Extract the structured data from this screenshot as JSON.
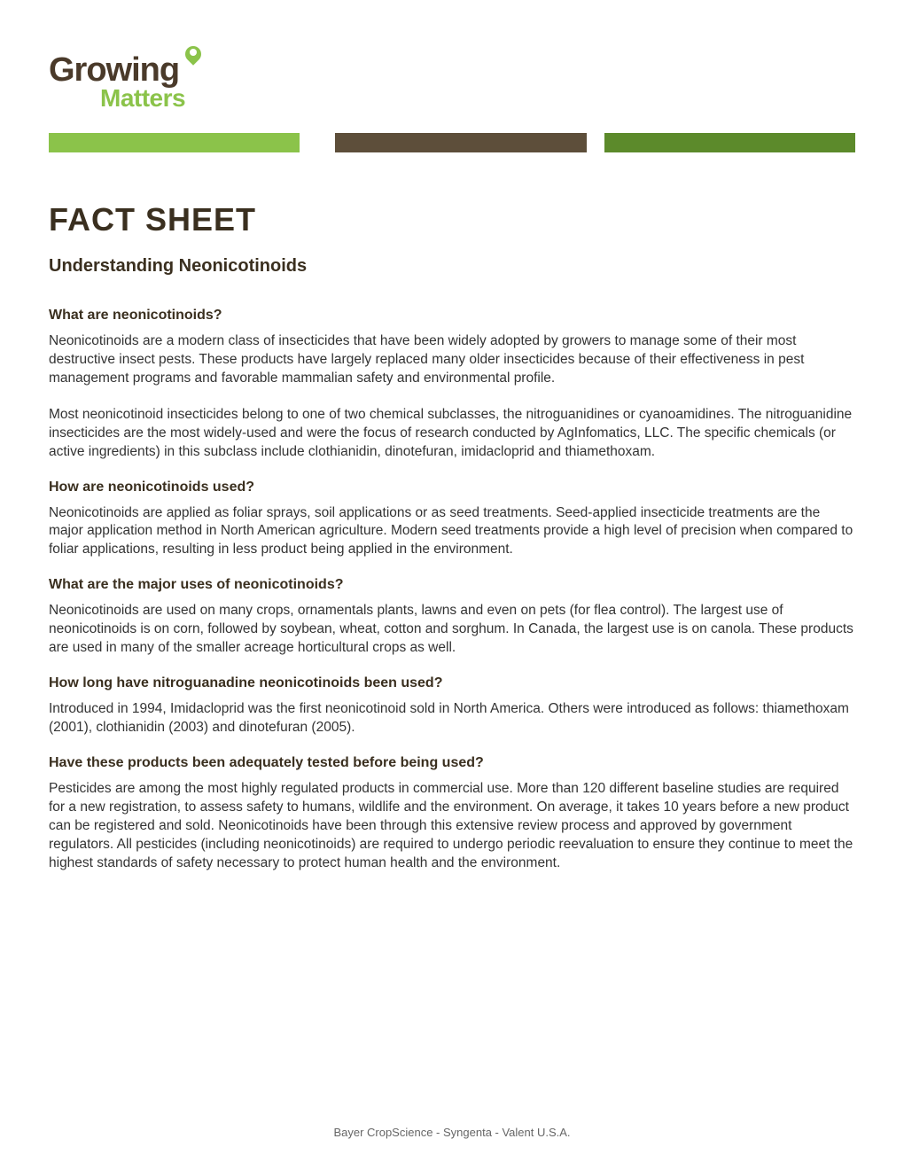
{
  "logo": {
    "text_top": "Growing",
    "text_bottom": "Matters"
  },
  "colors": {
    "light_green": "#8bc34a",
    "brown": "#5d4e3a",
    "dark_green": "#5c8a2b",
    "text_dark": "#3a2f1f",
    "body_text": "#333333",
    "footer_text": "#666666",
    "background": "#ffffff"
  },
  "main_title": "FACT SHEET",
  "subtitle": "Understanding Neonicotinoids",
  "sections": [
    {
      "heading": "What are neonicotinoids?",
      "paragraphs": [
        "Neonicotinoids are a modern class of insecticides that have been widely adopted by growers to manage some of their most destructive insect pests.  These products have largely replaced many older insecticides because of their effectiveness in pest management programs and favorable mammalian safety and environmental profile.",
        "Most neonicotinoid insecticides belong to one of two chemical subclasses, the nitroguanidines or cyanoamidines.   The nitroguanidine insecticides are the most widely-used and were the focus of research conducted by AgInfomatics, LLC.  The specific chemicals (or active ingredients) in this subclass include clothianidin, dinotefuran, imidacloprid and thiamethoxam."
      ]
    },
    {
      "heading": "How are neonicotinoids used?",
      "paragraphs": [
        "Neonicotinoids are applied as foliar sprays, soil applications or as seed treatments.  Seed-applied insecticide treatments are the major application method in North American agriculture.  Modern seed treatments provide a high level of precision when compared to foliar applications, resulting in less product being applied in the environment."
      ]
    },
    {
      "heading": "What are the major uses of neonicotinoids?",
      "paragraphs": [
        "Neonicotinoids are used on many crops, ornamentals plants, lawns and even on pets (for flea control).  The largest use of neonicotinoids is on corn, followed by soybean, wheat, cotton and sorghum.  In Canada, the largest use is on canola.  These products are used in many of the smaller acreage horticultural crops as well."
      ]
    },
    {
      "heading": "How long have nitroguanadine neonicotinoids been used?",
      "paragraphs": [
        "Introduced in 1994, Imidacloprid was the first neonicotinoid sold in North America.  Others were introduced as follows:  thiamethoxam (2001), clothianidin (2003) and dinotefuran (2005)."
      ]
    },
    {
      "heading": "Have these products been adequately tested before being used?",
      "paragraphs": [
        "Pesticides are among the most highly regulated products in commercial use.  More than 120 different baseline studies are required for a new registration, to assess safety to humans, wildlife and the environment. On average, it takes 10 years before a new product can be registered and sold.  Neonicotinoids have been through this extensive review process and approved by government regulators.  All pesticides (including neonicotinoids) are required to undergo periodic reevaluation to ensure they continue to meet the highest standards of safety necessary to protect human health and the environment."
      ]
    }
  ],
  "footer": "Bayer CropScience  -  Syngenta  -  Valent U.S.A."
}
